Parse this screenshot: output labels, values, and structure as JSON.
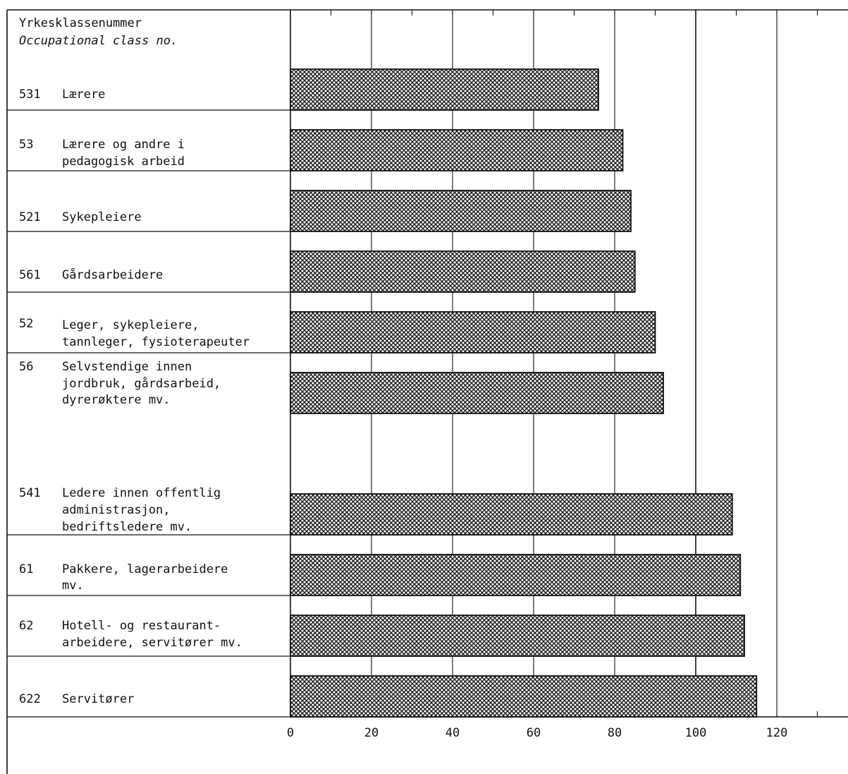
{
  "chart_data": {
    "type": "bar",
    "orientation": "horizontal",
    "header": {
      "line1": "Yrkesklassenummer",
      "line2": "Occupational class no."
    },
    "categories": [
      {
        "code": "531",
        "lines": [
          "Lærere"
        ]
      },
      {
        "code": "53",
        "lines": [
          "Lærere og andre i",
          "pedagogisk arbeid"
        ]
      },
      {
        "code": "521",
        "lines": [
          "Sykepleiere"
        ]
      },
      {
        "code": "561",
        "lines": [
          "Gårdsarbeidere"
        ]
      },
      {
        "code": "52",
        "lines": [
          "Leger, sykepleiere,",
          "tannleger, fysioterapeuter"
        ]
      },
      {
        "code": "56",
        "lines": [
          "Selvstendige innen",
          "jordbruk, gårdsarbeid,",
          "dyrerøktere mv."
        ]
      },
      {
        "code": "541",
        "lines": [
          "Ledere innen offentlig",
          "administrasjon,",
          "bedriftsledere mv."
        ]
      },
      {
        "code": "61",
        "lines": [
          "Pakkere, lagerarbeidere",
          "mv."
        ]
      },
      {
        "code": "62",
        "lines": [
          "Hotell- og restaurant-",
          "arbeidere, servitører mv."
        ]
      },
      {
        "code": "622",
        "lines": [
          "Servitører"
        ]
      }
    ],
    "values": [
      76,
      82,
      84,
      85,
      90,
      92,
      109,
      111,
      112,
      115
    ],
    "xlim": [
      0,
      140
    ],
    "xticks": [
      "0",
      "20",
      "40",
      "60",
      "80",
      "100",
      "120"
    ],
    "reference_line": 100,
    "bar_pattern": "crosshatch"
  }
}
